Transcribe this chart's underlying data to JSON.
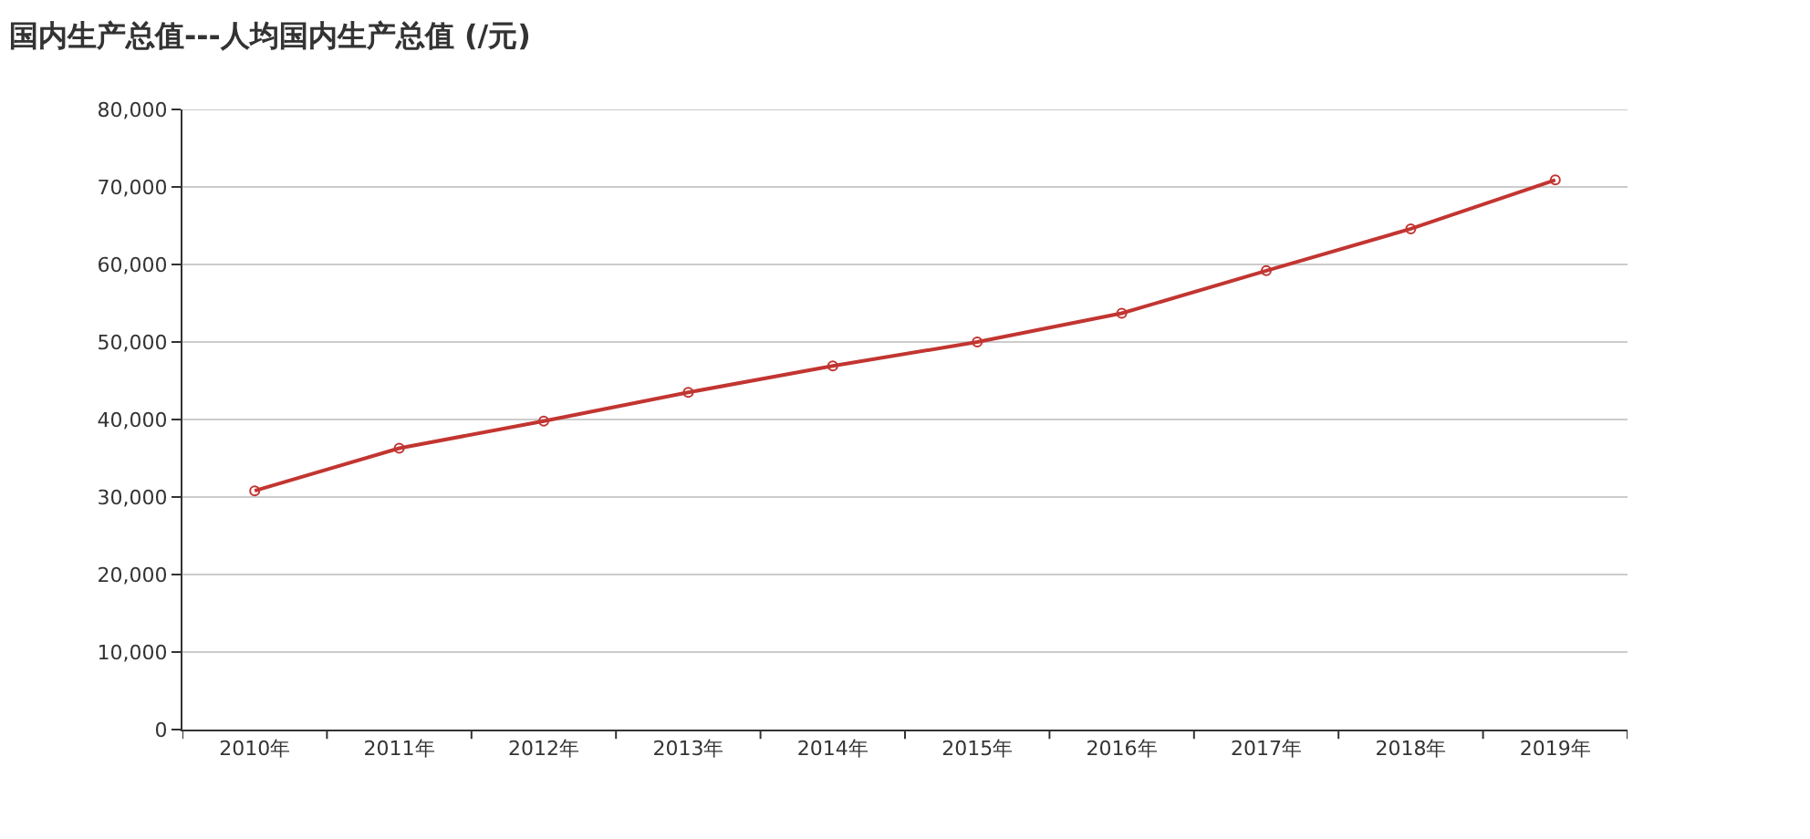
{
  "chart_data": {
    "type": "line",
    "title": "国内生产总值---人均国内生产总值 (/元)",
    "categories": [
      "2010年",
      "2011年",
      "2012年",
      "2013年",
      "2014年",
      "2015年",
      "2016年",
      "2017年",
      "2018年",
      "2019年"
    ],
    "series": [
      {
        "color": "#c23531",
        "values": [
          30800,
          36300,
          39800,
          43500,
          46900,
          50000,
          53700,
          59200,
          64600,
          70900
        ]
      }
    ],
    "ylim": [
      0,
      80000
    ],
    "yticks": [
      {
        "value": 0,
        "label": "0"
      },
      {
        "value": 10000,
        "label": "10,000"
      },
      {
        "value": 20000,
        "label": "20,000"
      },
      {
        "value": 30000,
        "label": "30,000"
      },
      {
        "value": 40000,
        "label": "40,000"
      },
      {
        "value": 50000,
        "label": "50,000"
      },
      {
        "value": 60000,
        "label": "60,000"
      },
      {
        "value": 70000,
        "label": "70,000"
      },
      {
        "value": 80000,
        "label": "80,000"
      }
    ],
    "grid": "y",
    "marker": "circle",
    "line_style": "solid"
  }
}
